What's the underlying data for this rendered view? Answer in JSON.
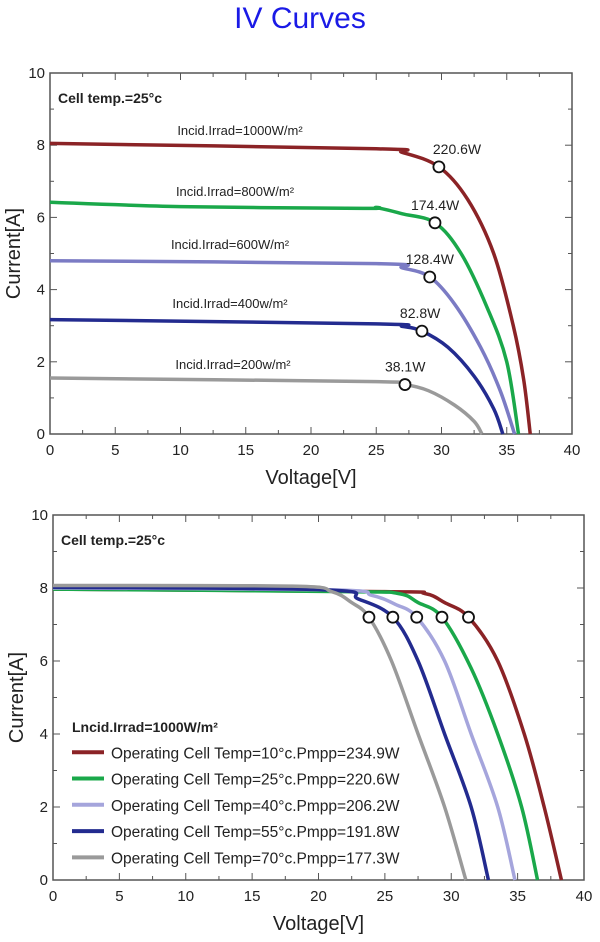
{
  "title": "IV Curves",
  "chart_data": [
    {
      "type": "line",
      "xlabel": "Voltage[V]",
      "ylabel": "Current[A]",
      "xlim": [
        0,
        40
      ],
      "ylim": [
        0,
        10
      ],
      "xticks": [
        0,
        5,
        10,
        15,
        20,
        25,
        30,
        35,
        40
      ],
      "yticks": [
        0,
        2,
        4,
        6,
        8,
        10
      ],
      "annotation": "Cell temp.=25°c",
      "series": [
        {
          "name": "Incid.Irrad=1000W/m²",
          "color": "#8b2326",
          "points": [
            [
              0,
              8.05
            ],
            [
              25,
              7.9
            ],
            [
              27,
              7.8
            ],
            [
              29.8,
              7.4
            ],
            [
              32,
              6.5
            ],
            [
              34,
              5
            ],
            [
              35.5,
              3
            ],
            [
              36.3,
              1.5
            ],
            [
              36.8,
              0
            ]
          ],
          "mpp": [
            29.8,
            7.4
          ],
          "mpp_label": "220.6W"
        },
        {
          "name": "Incid.Irrad=800W/m²",
          "color": "#1aa84a",
          "points": [
            [
              0,
              6.42
            ],
            [
              10,
              6.3
            ],
            [
              24,
              6.25
            ],
            [
              25,
              6.27
            ],
            [
              27,
              6.1
            ],
            [
              29.5,
              5.85
            ],
            [
              31.5,
              5
            ],
            [
              33.5,
              3.5
            ],
            [
              35,
              2
            ],
            [
              35.9,
              0
            ]
          ],
          "mpp": [
            29.5,
            5.85
          ],
          "mpp_label": "174.4W"
        },
        {
          "name": "Incid.Irrad=600W/m²",
          "color": "#7b7bc4",
          "points": [
            [
              0,
              4.8
            ],
            [
              25,
              4.72
            ],
            [
              27,
              4.6
            ],
            [
              29.1,
              4.35
            ],
            [
              31,
              3.6
            ],
            [
              33,
              2.4
            ],
            [
              34.5,
              1.2
            ],
            [
              35.6,
              0
            ]
          ],
          "mpp": [
            29.1,
            4.35
          ],
          "mpp_label": "128.4W"
        },
        {
          "name": "Incid.Irrad=400w/m²",
          "color": "#232b8f",
          "points": [
            [
              0,
              3.17
            ],
            [
              25,
              3.05
            ],
            [
              27,
              2.98
            ],
            [
              28.5,
              2.85
            ],
            [
              30.5,
              2.4
            ],
            [
              32.5,
              1.6
            ],
            [
              34,
              0.7
            ],
            [
              34.7,
              0
            ]
          ],
          "mpp": [
            28.5,
            2.85
          ],
          "mpp_label": "82.8W"
        },
        {
          "name": "Incid.Irrad=200w/m²",
          "color": "#9a9a9a",
          "points": [
            [
              0,
              1.55
            ],
            [
              25,
              1.45
            ],
            [
              27.2,
              1.37
            ],
            [
              29,
              1.2
            ],
            [
              31,
              0.8
            ],
            [
              32.5,
              0.35
            ],
            [
              33.1,
              0
            ]
          ],
          "mpp": [
            27.2,
            1.37
          ],
          "mpp_label": "38.1W"
        }
      ]
    },
    {
      "type": "line",
      "xlabel": "Voltage[V]",
      "ylabel": "Current[A]",
      "xlim": [
        0,
        40
      ],
      "ylim": [
        0,
        10
      ],
      "xticks": [
        0,
        5,
        10,
        15,
        20,
        25,
        30,
        35,
        40
      ],
      "yticks": [
        0,
        2,
        4,
        6,
        8,
        10
      ],
      "annotation": "Cell temp.=25°c",
      "legend_title": "Lncid.Irrad=1000W/m²",
      "legend_placement": "bottom-left",
      "series": [
        {
          "name": "Operating Cell Temp=10°c.Pmpp=234.9W",
          "color": "#8b2326",
          "points": [
            [
              0,
              7.97
            ],
            [
              25,
              7.9
            ],
            [
              28,
              7.85
            ],
            [
              29.5,
              7.6
            ],
            [
              31.3,
              7.2
            ],
            [
              33.5,
              6
            ],
            [
              35.5,
              4
            ],
            [
              37,
              2
            ],
            [
              38.3,
              0
            ]
          ],
          "mpp": [
            31.3,
            7.2
          ]
        },
        {
          "name": "Operating Cell Temp=25°c.Pmpp=220.6W",
          "color": "#1aa84a",
          "points": [
            [
              0,
              7.97
            ],
            [
              22,
              7.9
            ],
            [
              26,
              7.85
            ],
            [
              27.5,
              7.6
            ],
            [
              29.3,
              7.2
            ],
            [
              31.5,
              5.8
            ],
            [
              33.5,
              4
            ],
            [
              35.3,
              2
            ],
            [
              36.5,
              0
            ]
          ],
          "mpp": [
            29.3,
            7.2
          ]
        },
        {
          "name": "Operating Cell Temp=40°c.Pmpp=206.2W",
          "color": "#a5a5dc",
          "points": [
            [
              0,
              8.0
            ],
            [
              21,
              7.95
            ],
            [
              24,
              7.8
            ],
            [
              25.8,
              7.55
            ],
            [
              27.4,
              7.2
            ],
            [
              29.5,
              6
            ],
            [
              31.5,
              4
            ],
            [
              33.5,
              2
            ],
            [
              34.8,
              0
            ]
          ],
          "mpp": [
            27.4,
            7.2
          ]
        },
        {
          "name": "Operating Cell Temp=55°c.Pmpp=191.8W",
          "color": "#232b8f",
          "points": [
            [
              0,
              8.02
            ],
            [
              20.5,
              7.95
            ],
            [
              23,
              7.7
            ],
            [
              25.6,
              7.2
            ],
            [
              27.5,
              6
            ],
            [
              29.5,
              4
            ],
            [
              31.5,
              2
            ],
            [
              32.8,
              0
            ]
          ],
          "mpp": [
            25.6,
            7.2
          ]
        },
        {
          "name": "Operating Cell Temp=70°c.Pmpp=177.3W",
          "color": "#9a9a9a",
          "points": [
            [
              0,
              8.07
            ],
            [
              18,
              8.05
            ],
            [
              21,
              7.9
            ],
            [
              22.5,
              7.6
            ],
            [
              23.8,
              7.2
            ],
            [
              25.5,
              6
            ],
            [
              27.5,
              4
            ],
            [
              29.5,
              2
            ],
            [
              31.1,
              0
            ]
          ],
          "mpp": [
            23.8,
            7.2
          ]
        }
      ]
    }
  ]
}
